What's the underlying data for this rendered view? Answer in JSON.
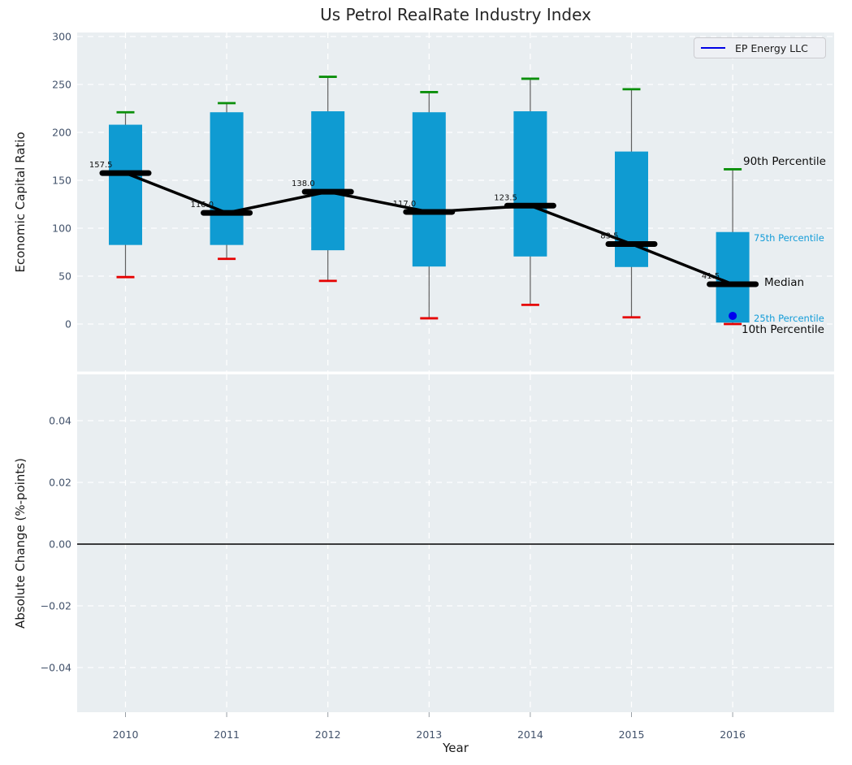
{
  "title": "Us Petrol RealRate Industry Index",
  "legend": {
    "label": "EP Energy LLC",
    "line_color": "#0000e6"
  },
  "axes": {
    "top": {
      "ylabel": "Economic Capital Ratio",
      "ytick_labels": [
        "300",
        "250",
        "200",
        "150",
        "100",
        "50",
        "0"
      ]
    },
    "bottom": {
      "ylabel": "Absolute Change (%-points)",
      "xlabel": "Year",
      "ytick_labels": [
        "0.04",
        "0.02",
        "0.00",
        "−0.02",
        "−0.04"
      ],
      "xtick_labels": [
        "2010",
        "2011",
        "2012",
        "2013",
        "2014",
        "2015",
        "2016"
      ]
    }
  },
  "annotations": {
    "p90": "90th Percentile",
    "p75": "75th Percentile",
    "median": "Median",
    "p25": "25th Percentile",
    "p10": "10th Percentile"
  },
  "colors": {
    "panel_bg": "#e9eef1",
    "grid": "#ffffff",
    "box_fill": "#0f9bd2",
    "whisker": "#606060",
    "cap_top": "#0a8f0a",
    "cap_bottom": "#e60000",
    "median_line": "#000000",
    "trend_line": "#000000",
    "overlay_dot": "#0000ee",
    "tick_label": "#42526b",
    "zero_line": "#000000",
    "annot_blue": "#149cd8"
  },
  "chart_data": [
    {
      "type": "box",
      "title": "Us Petrol RealRate Industry Index",
      "ylabel": "Economic Capital Ratio",
      "categories": [
        2010,
        2011,
        2012,
        2013,
        2014,
        2015,
        2016
      ],
      "yticks": [
        0,
        50,
        100,
        150,
        200,
        250,
        300
      ],
      "ylim": [
        -50,
        304
      ],
      "grid": true,
      "legend_position": "upper right",
      "boxes": [
        {
          "year": 2010,
          "p10": 49,
          "p25": 82.5,
          "median": 157.5,
          "p75": 208,
          "p90": 221,
          "median_label": "157.5"
        },
        {
          "year": 2011,
          "p10": 68,
          "p25": 82.5,
          "median": 116.0,
          "p75": 221,
          "p90": 230.5,
          "median_label": "116.0"
        },
        {
          "year": 2012,
          "p10": 45,
          "p25": 77,
          "median": 138.0,
          "p75": 222,
          "p90": 258,
          "median_label": "138.0"
        },
        {
          "year": 2013,
          "p10": 6,
          "p25": 60,
          "median": 117.0,
          "p75": 221,
          "p90": 242,
          "median_label": "117.0"
        },
        {
          "year": 2014,
          "p10": 20,
          "p25": 70.5,
          "median": 123.5,
          "p75": 222,
          "p90": 256,
          "median_label": "123.5"
        },
        {
          "year": 2015,
          "p10": 7,
          "p25": 59.5,
          "median": 83.5,
          "p75": 180,
          "p90": 245,
          "median_label": "83.5"
        },
        {
          "year": 2016,
          "p10": 0,
          "p25": 1.5,
          "median": 41.5,
          "p75": 96,
          "p90": 161.5,
          "median_label": "41.5"
        }
      ],
      "median_trend": [
        157.5,
        116.0,
        138.0,
        117.0,
        123.5,
        83.5,
        41.5
      ],
      "overlay_point": {
        "name": "EP Energy LLC",
        "x": 2016,
        "y": 8.5
      }
    },
    {
      "type": "line",
      "ylabel": "Absolute Change (%-points)",
      "xlabel": "Year",
      "x": [
        2010,
        2011,
        2012,
        2013,
        2014,
        2015,
        2016
      ],
      "series": [],
      "yticks": [
        0.04,
        0.02,
        0.0,
        -0.02,
        -0.04
      ],
      "ylim": [
        -0.056,
        0.055
      ],
      "grid": true,
      "zero_line": true
    }
  ]
}
